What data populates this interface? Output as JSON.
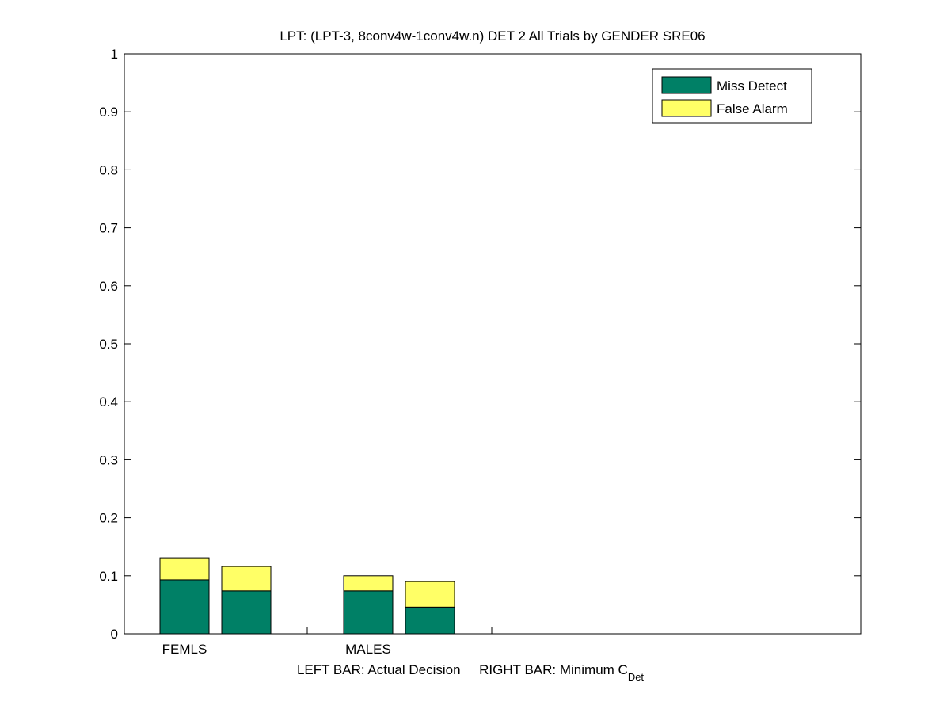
{
  "chart_data": {
    "type": "stacked_group_bar",
    "title": "LPT: (LPT-3, 8conv4w-1conv4w.n) DET 2 All Trials by GENDER SRE06",
    "xlabel": {
      "text": "LEFT BAR: Actual Decision     RIGHT BAR: Minimum C",
      "subscript": "Det"
    },
    "categories": [
      "FEMLS",
      "MALES"
    ],
    "series": [
      {
        "name": "Miss Detect",
        "color": "#008066",
        "values": [
          [
            0.093,
            0.074
          ],
          [
            0.074,
            0.046
          ]
        ]
      },
      {
        "name": "False Alarm",
        "color": "#ffff66",
        "values": [
          [
            0.038,
            0.042
          ],
          [
            0.026,
            0.044
          ]
        ]
      }
    ],
    "ylim": [
      0,
      1
    ],
    "yticks": [
      0,
      0.1,
      0.2,
      0.3,
      0.4,
      0.5,
      0.6,
      0.7,
      0.8,
      0.9,
      1
    ],
    "legend": "upper right"
  }
}
